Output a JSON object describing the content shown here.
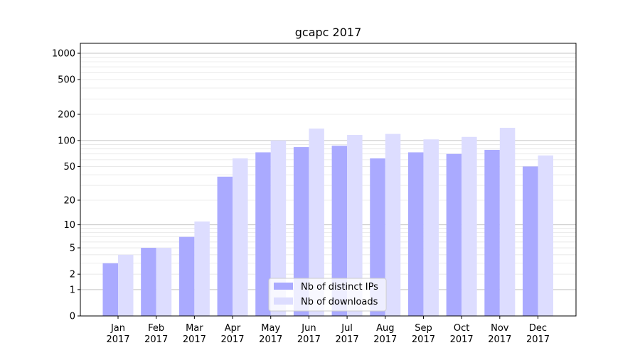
{
  "chart_data": {
    "type": "bar",
    "title": "gcapc 2017",
    "xlabel": "",
    "ylabel": "",
    "yscale": "symlog",
    "ylim": [
      0,
      1300
    ],
    "yticks": [
      0,
      1,
      2,
      5,
      10,
      20,
      50,
      100,
      200,
      500,
      1000
    ],
    "grid": true,
    "legend_position": "lower-center",
    "categories": [
      "Jan\n2017",
      "Feb\n2017",
      "Mar\n2017",
      "Apr\n2017",
      "May\n2017",
      "Jun\n2017",
      "Jul\n2017",
      "Aug\n2017",
      "Sep\n2017",
      "Oct\n2017",
      "Nov\n2017",
      "Dec\n2017"
    ],
    "series": [
      {
        "name": "Nb of distinct IPs",
        "color": "#aaaaff",
        "values": [
          3,
          5,
          7,
          38,
          73,
          84,
          87,
          62,
          73,
          70,
          78,
          50
        ]
      },
      {
        "name": "Nb of downloads",
        "color": "#ddddff",
        "values": [
          4,
          5,
          11,
          62,
          100,
          137,
          116,
          119,
          103,
          110,
          140,
          67
        ]
      }
    ]
  }
}
